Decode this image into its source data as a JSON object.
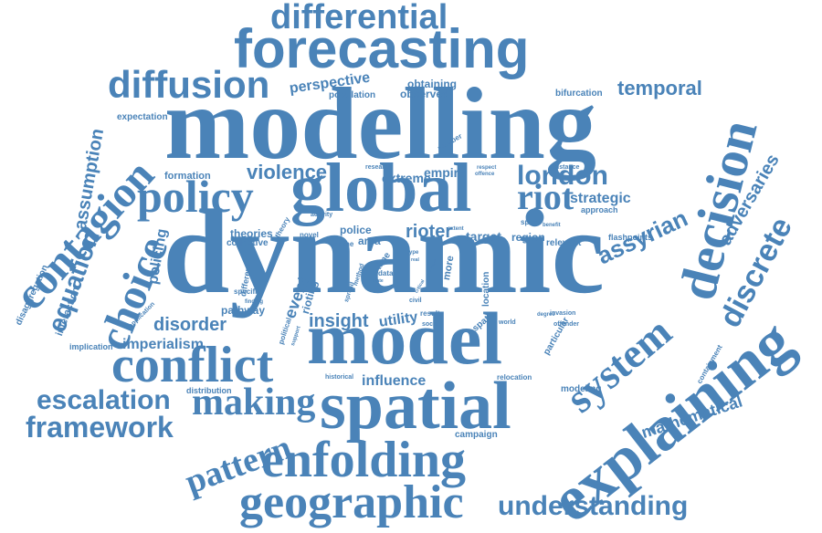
{
  "style": {
    "word_color": "#4a83b8",
    "background": "#ffffff"
  },
  "words": {
    "modelling": "modelling",
    "dynamic": "dynamic",
    "global": "global",
    "model": "model",
    "spatial": "spatial",
    "explaining": "explaining",
    "forecasting": "forecasting",
    "decision": "decision",
    "conflict": "conflict",
    "contagion": "contagion",
    "system": "system",
    "enfolding": "enfolding",
    "geographic": "geographic",
    "policy": "policy",
    "diffusion": "diffusion",
    "differential": "differential",
    "choice": "choice",
    "making": "making",
    "pattern": "pattern",
    "discrete": "discrete",
    "riot": "riot",
    "framework": "framework",
    "escalation": "escalation",
    "london": "london",
    "understanding": "understanding",
    "equation": "equation",
    "assyrian": "assyrian",
    "violence": "violence",
    "temporal": "temporal",
    "adversaries": "adversaries",
    "mathematical": "mathematical",
    "assumption": "assumption",
    "insight": "insight",
    "rioter": "rioter",
    "disorder": "disorder",
    "imperialism": "imperialism",
    "perspective": "perspective",
    "strategic": "strategic",
    "influence": "influence",
    "utility": "utility",
    "event": "event",
    "extreme": "extreme",
    "empire": "empire",
    "observed": "observed",
    "obtaining": "obtaining",
    "target": "target",
    "region": "region",
    "police": "police",
    "area": "area",
    "policing": "policing",
    "pathway": "pathway",
    "theories": "theories",
    "collective": "collective",
    "formation": "formation",
    "population": "population",
    "expectation": "expectation",
    "bifurcation": "bifurcation",
    "approach": "approach",
    "flashpoints": "flashpoints",
    "relevant": "relevant",
    "space": "space",
    "benefit": "benefit",
    "extent": "extent",
    "research": "research",
    "offence": "offence",
    "respect": "respect",
    "distance": "distance",
    "number": "number",
    "activity": "activity",
    "novel": "novel",
    "crime": "crime",
    "time": "time",
    "type": "type",
    "real": "real",
    "data": "data",
    "state": "state",
    "more": "more",
    "location": "location",
    "spatio": "spatio",
    "social": "social",
    "world": "world",
    "degree": "degree",
    "invasion": "invasion",
    "offender": "offender",
    "particular": "particular",
    "containment": "containment",
    "modeling": "modeling",
    "relocation": "relocation",
    "historical": "historical",
    "campaign": "campaign",
    "civil": "civil",
    "result": "result",
    "rioting": "rioting",
    "spread": "spread",
    "method": "method",
    "political": "political",
    "support": "support",
    "different": "different",
    "specific": "specific",
    "finding": "finding",
    "application": "application",
    "interaction": "interaction",
    "implication": "implication",
    "disaggregation": "disaggregation",
    "distribution": "distribution",
    "theory": "theory",
    "critical": "critical",
    "impact": "impact"
  }
}
